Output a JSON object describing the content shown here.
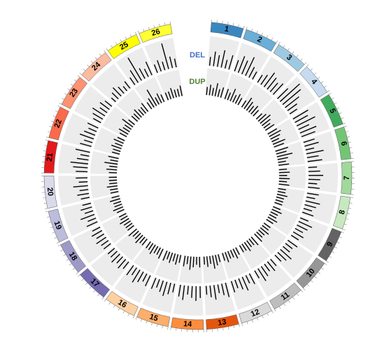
{
  "chart_data": {
    "type": "circos",
    "chromosomes": [
      {
        "label": "1",
        "color": "#3a87c0"
      },
      {
        "label": "2",
        "color": "#6baed6"
      },
      {
        "label": "3",
        "color": "#9ecae1"
      },
      {
        "label": "4",
        "color": "#c6dbef"
      },
      {
        "label": "5",
        "color": "#41ab5d"
      },
      {
        "label": "6",
        "color": "#74c476"
      },
      {
        "label": "7",
        "color": "#a1d99b"
      },
      {
        "label": "8",
        "color": "#c7e9c0"
      },
      {
        "label": "9",
        "color": "#636363"
      },
      {
        "label": "10",
        "color": "#969696"
      },
      {
        "label": "11",
        "color": "#bdbdbd"
      },
      {
        "label": "12",
        "color": "#d9d9d9"
      },
      {
        "label": "13",
        "color": "#e6550d"
      },
      {
        "label": "14",
        "color": "#fd8d3c"
      },
      {
        "label": "15",
        "color": "#fdae6b"
      },
      {
        "label": "16",
        "color": "#fdd0a2"
      },
      {
        "label": "17",
        "color": "#756bb1"
      },
      {
        "label": "18",
        "color": "#9e9ac8"
      },
      {
        "label": "19",
        "color": "#bcbddc"
      },
      {
        "label": "20",
        "color": "#dadaeb"
      },
      {
        "label": "21",
        "color": "#e31a1c"
      },
      {
        "label": "22",
        "color": "#fb6a4a"
      },
      {
        "label": "23",
        "color": "#fc9272"
      },
      {
        "label": "24",
        "color": "#fcbba1"
      },
      {
        "label": "25",
        "color": "#ffff00"
      },
      {
        "label": "26",
        "color": "#ffff33"
      }
    ],
    "series": [
      {
        "name": "DEL",
        "label_color": "#4472c4",
        "color": "#000000",
        "values": [
          [
            0.3,
            0.5,
            0.4,
            0.6,
            0.3,
            0.5
          ],
          [
            0.4,
            0.6,
            0.5,
            0.7,
            0.4,
            0.3
          ],
          [
            0.3,
            0.4,
            0.6,
            0.5,
            0.4,
            0.5
          ],
          [
            0.5,
            0.9,
            0.8,
            0.6,
            0.4,
            0.3
          ],
          [
            0.6,
            0.5,
            0.7,
            0.4,
            0.6,
            0.5
          ],
          [
            0.4,
            0.5,
            0.3,
            0.6,
            0.4,
            0.5
          ],
          [
            0.3,
            0.4,
            0.5,
            0.4,
            0.3,
            0.4
          ],
          [
            0.4,
            0.3,
            0.5,
            0.4,
            0.3,
            0.4
          ],
          [
            0.3,
            0.5,
            0.4,
            0.3,
            0.4,
            0.3
          ],
          [
            0.4,
            0.3,
            0.3,
            0.5,
            0.4,
            0.3
          ],
          [
            0.3,
            0.4,
            0.3,
            0.4,
            0.5,
            0.3
          ],
          [
            0.4,
            0.3,
            0.5,
            0.4,
            0.3,
            0.4
          ],
          [
            0.5,
            0.4,
            0.3,
            0.5,
            0.4,
            0.3
          ],
          [
            0.4,
            0.5,
            0.4,
            0.3,
            0.5,
            0.4
          ],
          [
            0.3,
            0.4,
            0.5,
            0.4,
            0.3,
            0.4
          ],
          [
            0.4,
            0.3,
            0.4,
            0.5,
            0.3,
            0.4
          ],
          [
            0.3,
            0.4,
            0.3,
            0.4,
            0.3,
            0.3
          ],
          [
            0.3,
            0.3,
            0.4,
            0.3,
            0.4,
            0.3
          ],
          [
            0.4,
            0.3,
            0.5,
            0.3,
            0.4,
            0.3
          ],
          [
            0.3,
            0.4,
            0.3,
            0.5,
            0.3,
            0.4
          ],
          [
            0.4,
            0.5,
            0.6,
            0.4,
            0.3,
            0.5
          ],
          [
            0.4,
            0.3,
            0.5,
            0.4,
            0.3,
            0.4
          ],
          [
            0.3,
            0.4,
            0.5,
            0.3,
            0.4,
            0.3
          ],
          [
            0.2,
            0.3,
            0.4,
            0.3,
            0.2,
            0.3
          ],
          [
            0.3,
            0.5,
            0.9,
            0.4,
            0.3,
            0.5
          ],
          [
            0.3,
            0.4,
            0.3,
            0.9,
            0.4,
            0.3
          ]
        ]
      },
      {
        "name": "DUP",
        "label_color": "#548235",
        "color": "#000000",
        "values": [
          [
            0.3,
            0.4,
            0.3,
            0.5,
            0.3,
            0.4
          ],
          [
            0.4,
            0.3,
            0.5,
            0.3,
            0.4,
            0.3
          ],
          [
            0.3,
            0.5,
            0.4,
            0.3,
            0.4,
            0.3
          ],
          [
            0.3,
            0.4,
            0.5,
            0.4,
            0.3,
            0.4
          ],
          [
            0.4,
            0.5,
            0.4,
            0.3,
            0.5,
            0.4
          ],
          [
            0.5,
            0.4,
            0.6,
            0.4,
            0.3,
            0.4
          ],
          [
            0.3,
            0.4,
            0.3,
            0.4,
            0.3,
            0.4
          ],
          [
            0.3,
            0.3,
            0.4,
            0.3,
            0.3,
            0.3
          ],
          [
            0.3,
            0.4,
            0.3,
            0.3,
            0.4,
            0.3
          ],
          [
            0.3,
            0.3,
            0.4,
            0.3,
            0.3,
            0.4
          ],
          [
            0.4,
            0.3,
            0.3,
            0.4,
            0.3,
            0.3
          ],
          [
            0.3,
            0.4,
            0.3,
            0.3,
            0.4,
            0.3
          ],
          [
            0.3,
            0.4,
            0.5,
            0.3,
            0.4,
            0.3
          ],
          [
            0.4,
            0.3,
            0.4,
            0.5,
            0.3,
            0.4
          ],
          [
            0.3,
            0.4,
            0.3,
            0.4,
            0.3,
            0.4
          ],
          [
            0.4,
            0.3,
            0.3,
            0.4,
            0.3,
            0.3
          ],
          [
            0.3,
            0.3,
            0.4,
            0.3,
            0.3,
            0.4
          ],
          [
            0.3,
            0.3,
            0.3,
            0.4,
            0.3,
            0.3
          ],
          [
            0.3,
            0.4,
            0.3,
            0.3,
            0.4,
            0.3
          ],
          [
            0.3,
            0.3,
            0.4,
            0.3,
            0.3,
            0.3
          ],
          [
            0.3,
            0.4,
            0.3,
            0.5,
            0.3,
            0.4
          ],
          [
            0.3,
            0.3,
            0.4,
            0.3,
            0.4,
            0.3
          ],
          [
            0.3,
            0.4,
            0.3,
            0.3,
            0.5,
            0.3
          ],
          [
            0.3,
            0.3,
            0.4,
            0.3,
            0.3,
            0.4
          ],
          [
            0.3,
            0.4,
            0.7,
            0.3,
            0.4,
            0.3
          ],
          [
            0.3,
            0.3,
            0.4,
            0.3,
            0.3,
            0.4
          ]
        ]
      }
    ]
  }
}
